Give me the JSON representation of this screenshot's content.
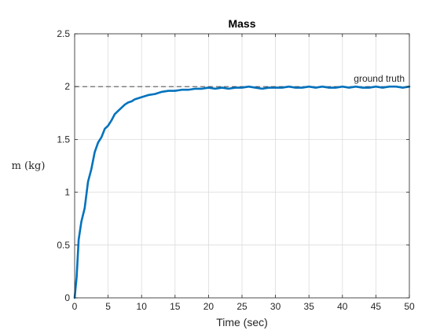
{
  "chart_data": {
    "type": "line",
    "title": "Mass",
    "xlabel": "Time (sec)",
    "ylabel": "m (kg)",
    "xlim": [
      0,
      50
    ],
    "ylim": [
      0,
      2.5
    ],
    "x_ticks": [
      0,
      5,
      10,
      15,
      20,
      25,
      30,
      35,
      40,
      45,
      50
    ],
    "y_ticks": [
      0,
      0.5,
      1,
      1.5,
      2,
      2.5
    ],
    "x_tick_labels": [
      "0",
      "5",
      "10",
      "15",
      "20",
      "25",
      "30",
      "35",
      "40",
      "45",
      "50"
    ],
    "y_tick_labels": [
      "0",
      "0.5",
      "1",
      "1.5",
      "2",
      "2.5"
    ],
    "grid": true,
    "reference_line": {
      "value": 2,
      "label": "ground truth",
      "color": "#333333",
      "style": "dashed"
    },
    "series": [
      {
        "color": "#0072BD",
        "x": [
          0,
          0.3,
          0.6,
          1,
          1.5,
          2,
          2.5,
          3,
          3.5,
          4,
          4.5,
          5,
          5.5,
          6,
          6.5,
          7,
          7.5,
          8,
          8.5,
          9,
          9.5,
          10,
          11,
          12,
          13,
          14,
          15,
          16,
          17,
          18,
          19,
          20,
          21,
          22,
          23,
          24,
          25,
          26,
          27,
          28,
          29,
          30,
          31,
          32,
          33,
          34,
          35,
          36,
          37,
          38,
          39,
          40,
          41,
          42,
          43,
          44,
          45,
          46,
          47,
          48,
          49,
          50
        ],
        "y": [
          0,
          0.2,
          0.55,
          0.72,
          0.85,
          1.1,
          1.22,
          1.38,
          1.47,
          1.52,
          1.6,
          1.63,
          1.68,
          1.74,
          1.77,
          1.8,
          1.83,
          1.85,
          1.86,
          1.88,
          1.89,
          1.9,
          1.92,
          1.93,
          1.95,
          1.96,
          1.96,
          1.97,
          1.97,
          1.98,
          1.98,
          1.99,
          1.98,
          1.99,
          1.98,
          1.99,
          1.99,
          2.0,
          1.99,
          1.98,
          1.99,
          1.99,
          1.99,
          2.0,
          1.99,
          1.99,
          2.0,
          1.99,
          2.0,
          1.99,
          1.99,
          2.0,
          1.99,
          2.0,
          1.99,
          1.99,
          2.0,
          1.99,
          2.0,
          2.0,
          1.99,
          2.0
        ]
      }
    ]
  }
}
